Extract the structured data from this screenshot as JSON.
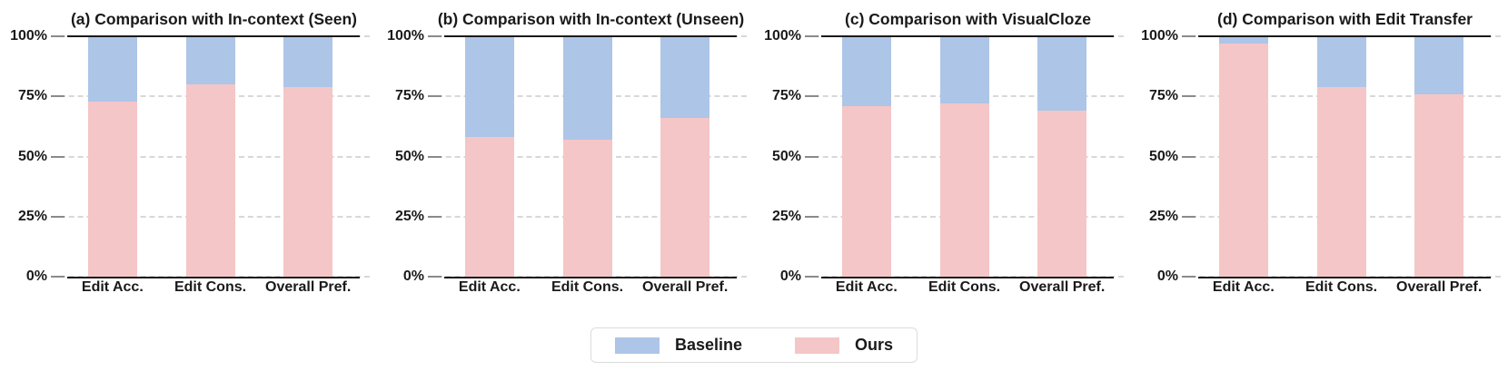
{
  "y_tick_labels": [
    "100%",
    "75%",
    "50%",
    "25%",
    "0%"
  ],
  "colors": {
    "baseline": "#adc5e7",
    "ours": "#f5c6c7",
    "grid": "#d8d8d8",
    "tick": "#8a8a8a",
    "axis": "#1a1a1a",
    "legend_border": "#dcdcdc"
  },
  "legend": {
    "items": [
      {
        "label": "Baseline",
        "color_key": "baseline"
      },
      {
        "label": "Ours",
        "color_key": "ours"
      }
    ]
  },
  "chart_data": [
    {
      "type": "bar",
      "stacked": true,
      "title": "(a) Comparison with In-context (Seen)",
      "categories": [
        "Edit Acc.",
        "Edit Cons.",
        "Overall Pref."
      ],
      "series": [
        {
          "name": "Baseline",
          "values": [
            27,
            20,
            21
          ]
        },
        {
          "name": "Ours",
          "values": [
            73,
            80,
            79
          ]
        }
      ],
      "xlabel": "",
      "ylabel": "",
      "ylim": [
        0,
        100
      ],
      "ytick_labels": [
        "0%",
        "25%",
        "50%",
        "75%",
        "100%"
      ],
      "grid": "horizontal-dashed",
      "legend_position": "shared-bottom"
    },
    {
      "type": "bar",
      "stacked": true,
      "title": "(b) Comparison with In-context (Unseen)",
      "categories": [
        "Edit Acc.",
        "Edit Cons.",
        "Overall Pref."
      ],
      "series": [
        {
          "name": "Baseline",
          "values": [
            42,
            43,
            34
          ]
        },
        {
          "name": "Ours",
          "values": [
            58,
            57,
            66
          ]
        }
      ],
      "xlabel": "",
      "ylabel": "",
      "ylim": [
        0,
        100
      ],
      "ytick_labels": [
        "0%",
        "25%",
        "50%",
        "75%",
        "100%"
      ],
      "grid": "horizontal-dashed",
      "legend_position": "shared-bottom"
    },
    {
      "type": "bar",
      "stacked": true,
      "title": "(c) Comparison with VisualCloze",
      "categories": [
        "Edit Acc.",
        "Edit Cons.",
        "Overall Pref."
      ],
      "series": [
        {
          "name": "Baseline",
          "values": [
            29,
            28,
            31
          ]
        },
        {
          "name": "Ours",
          "values": [
            71,
            72,
            69
          ]
        }
      ],
      "xlabel": "",
      "ylabel": "",
      "ylim": [
        0,
        100
      ],
      "ytick_labels": [
        "0%",
        "25%",
        "50%",
        "75%",
        "100%"
      ],
      "grid": "horizontal-dashed",
      "legend_position": "shared-bottom"
    },
    {
      "type": "bar",
      "stacked": true,
      "title": "(d) Comparison with Edit Transfer",
      "categories": [
        "Edit Acc.",
        "Edit Cons.",
        "Overall Pref."
      ],
      "series": [
        {
          "name": "Baseline",
          "values": [
            3,
            21,
            24
          ]
        },
        {
          "name": "Ours",
          "values": [
            97,
            79,
            76
          ]
        }
      ],
      "xlabel": "",
      "ylabel": "",
      "ylim": [
        0,
        100
      ],
      "ytick_labels": [
        "0%",
        "25%",
        "50%",
        "75%",
        "100%"
      ],
      "grid": "horizontal-dashed",
      "legend_position": "shared-bottom"
    }
  ]
}
